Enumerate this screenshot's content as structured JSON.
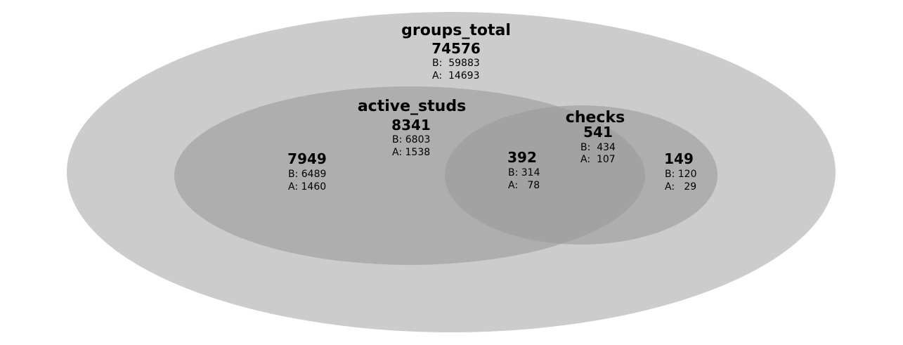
{
  "diagram": {
    "type": "euler",
    "colors": {
      "outer_fill": "#cccccc",
      "inner_fill": "#999999",
      "background": "#ffffff",
      "text": "#000000"
    },
    "sets": {
      "groups_total": {
        "name": "groups_total",
        "total": "74576",
        "b": "B:  59883",
        "a": "A:  14693"
      },
      "active_studs": {
        "name": "active_studs",
        "total": "8341",
        "b": "B: 6803",
        "a": "A: 1538"
      },
      "checks": {
        "name": "checks",
        "total": "541",
        "b": "B:  434",
        "a": "A:  107"
      }
    },
    "regions": {
      "active_only": {
        "total": "7949",
        "b": "B: 6489",
        "a": "A: 1460"
      },
      "intersection": {
        "total": "392",
        "b": "B: 314",
        "a": "A:   78"
      },
      "checks_only": {
        "total": "149",
        "b": "B: 120",
        "a": "A:   29"
      }
    }
  }
}
